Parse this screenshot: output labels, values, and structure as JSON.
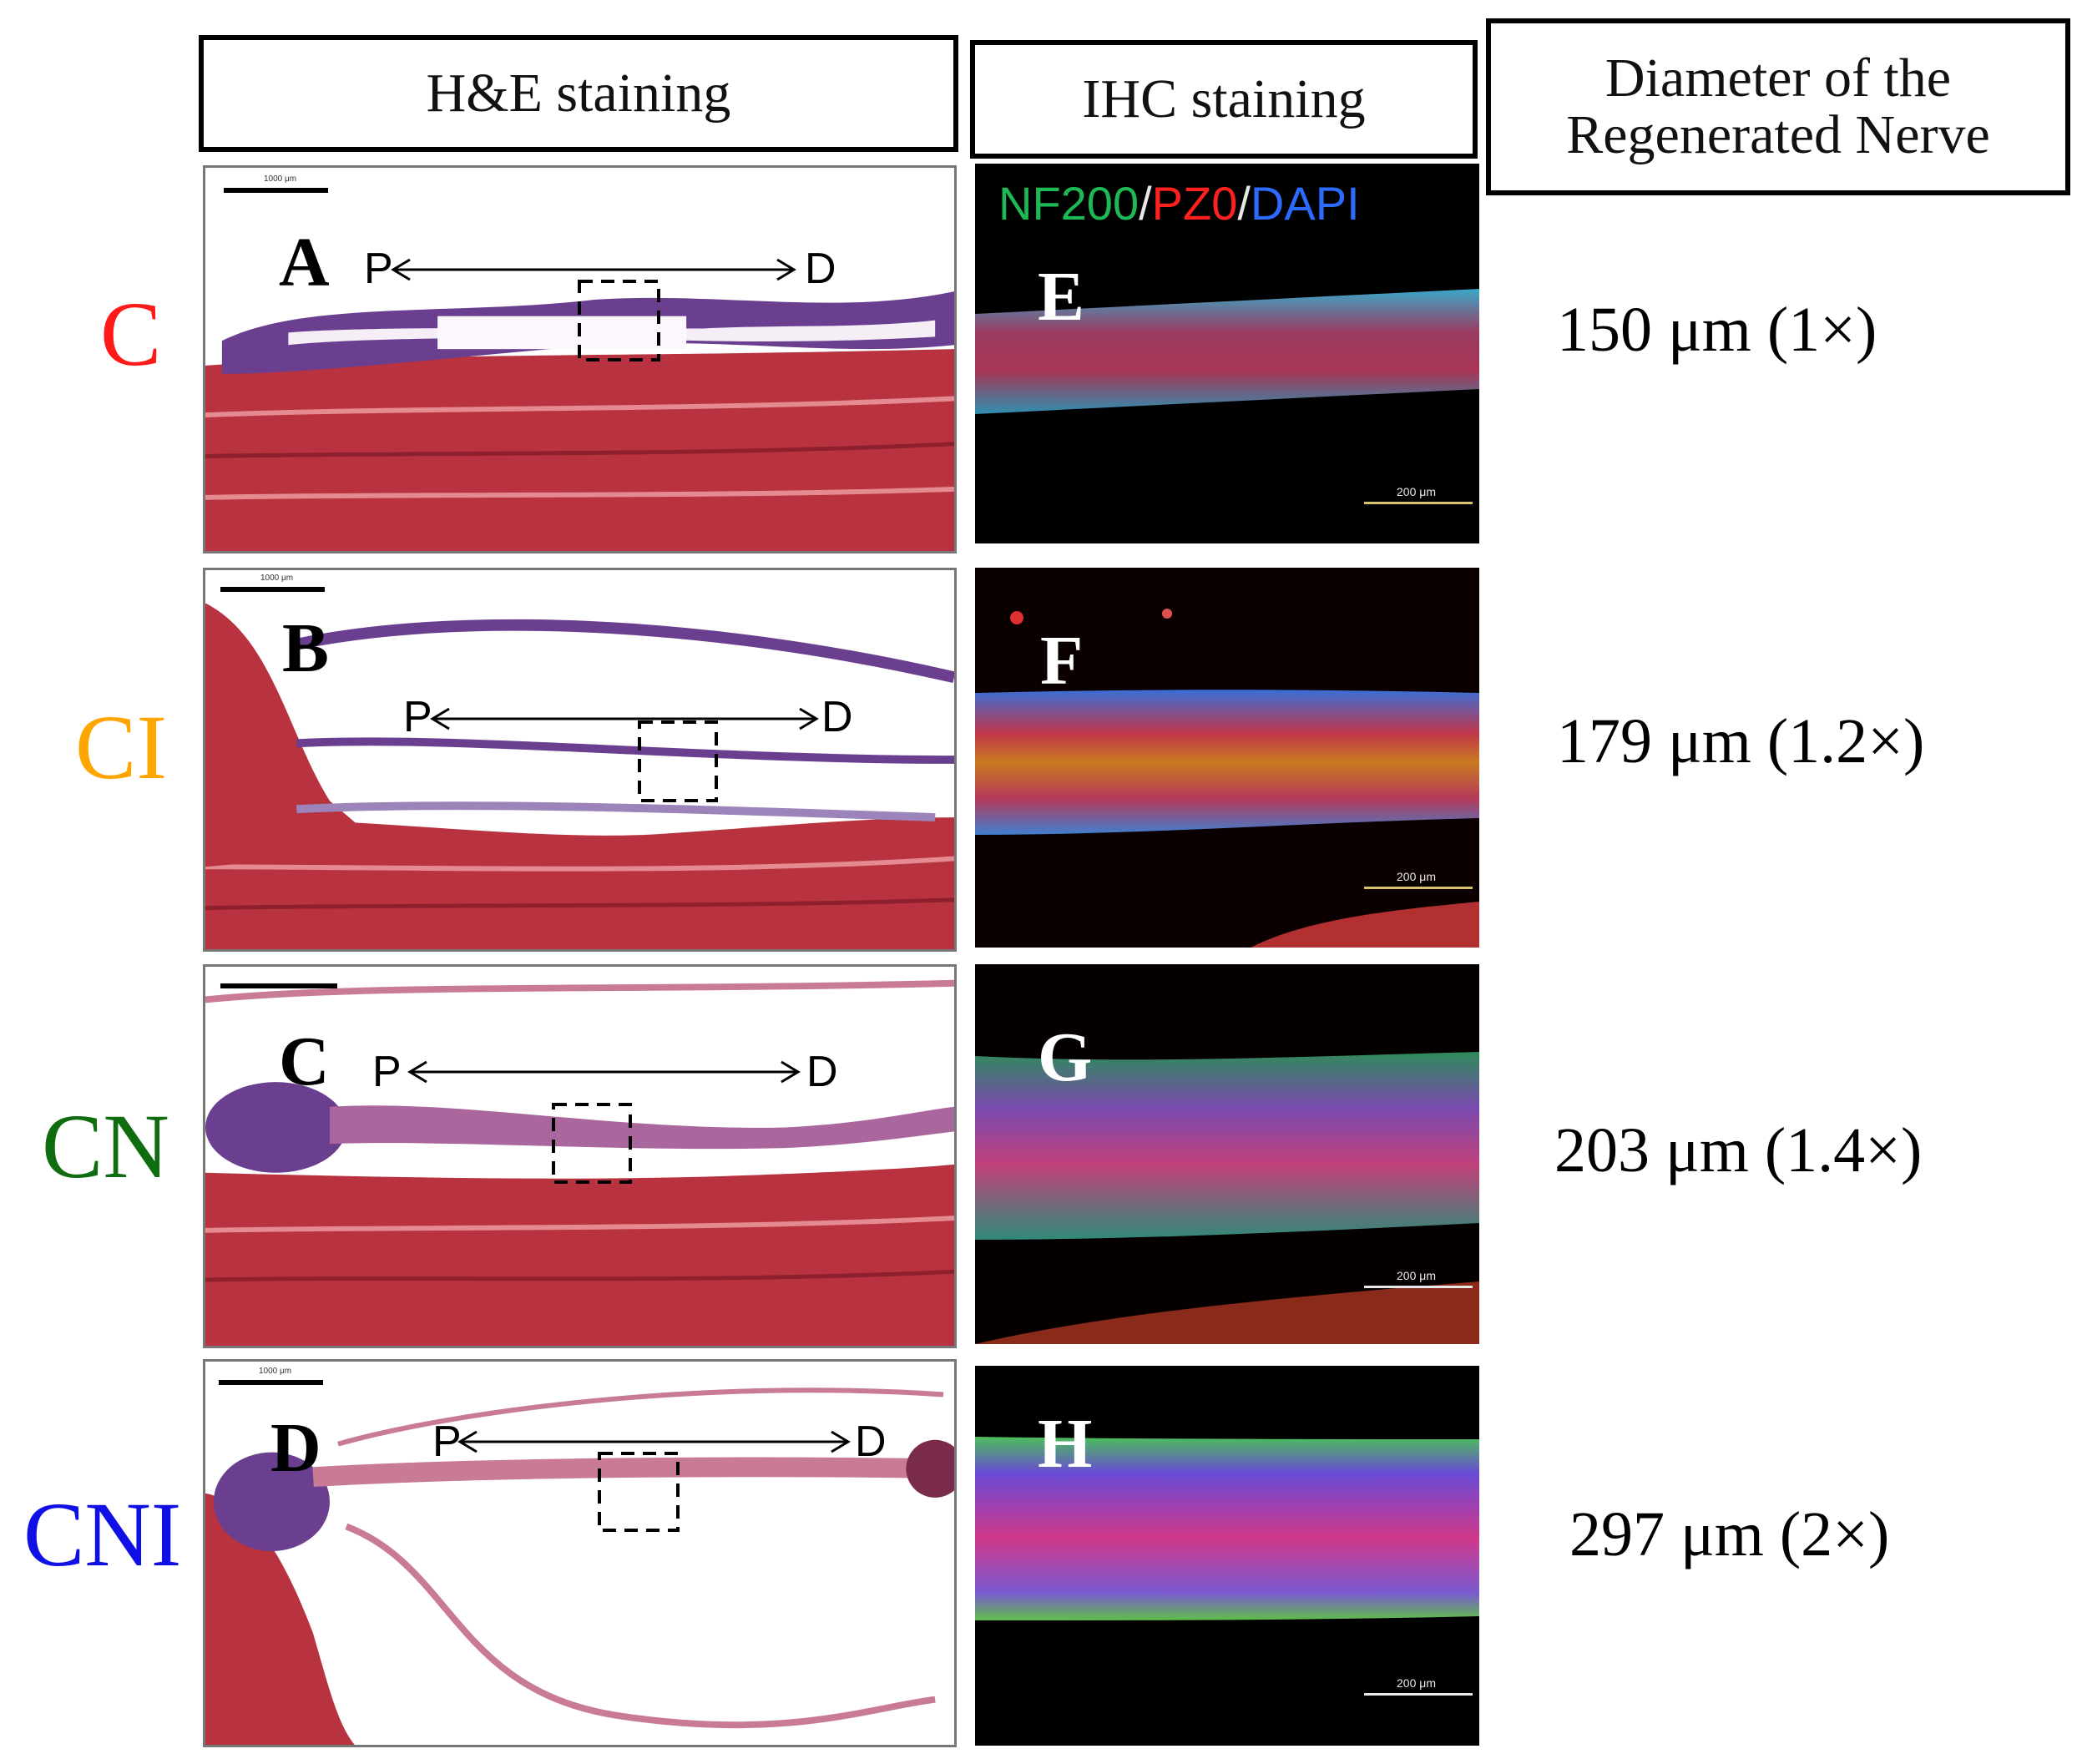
{
  "headers": {
    "he": "H&E staining",
    "ihc": "IHC staining",
    "diameter_line1": "Diameter of the",
    "diameter_line2": "Regenerated Nerve"
  },
  "marker": {
    "part1": "NF200",
    "sep1": "/",
    "part2": "PZ0",
    "sep2": "/",
    "part3": "DAPI",
    "colors": {
      "nf200": "#1db954",
      "pz0": "#ff2020",
      "dapi": "#2d6bff"
    }
  },
  "proximal": "P",
  "distal": "D",
  "he_scale": "1000 μm",
  "ihc_scale": "200 μm",
  "rows": [
    {
      "group": "C",
      "group_color": "#ff1a1a",
      "he_letter": "A",
      "ihc_letter": "E",
      "diameter": "150 μm (1×)"
    },
    {
      "group": "CI",
      "group_color": "#ffa500",
      "he_letter": "B",
      "ihc_letter": "F",
      "diameter": "179 μm (1.2×)"
    },
    {
      "group": "CN",
      "group_color": "#0f6d0f",
      "he_letter": "C",
      "ihc_letter": "G",
      "diameter": "203 μm (1.4×)"
    },
    {
      "group": "CNI",
      "group_color": "#1010e6",
      "he_letter": "D",
      "ihc_letter": "H",
      "diameter": "297 μm (2×)"
    }
  ]
}
